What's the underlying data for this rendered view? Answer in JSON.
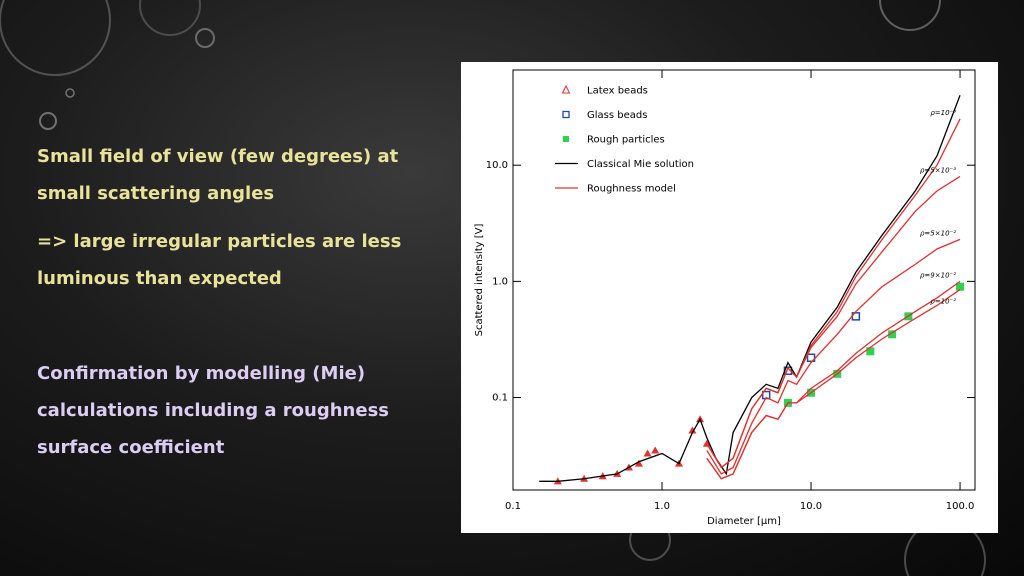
{
  "slide": {
    "paragraphs": [
      {
        "lines": [
          "Small field of view (few degrees) at",
          "small scattering angles"
        ],
        "color": "#e9e39a"
      },
      {
        "lines": [
          "=> large irregular  particles are less",
          "luminous than expected"
        ],
        "color": "#e9e39a"
      },
      {
        "lines": [
          "Confirmation by modelling (Mie)",
          "calculations including a roughness",
          "surface coefficient"
        ],
        "color": "#dccdf2"
      }
    ]
  },
  "chart_data": {
    "type": "scatter",
    "log_x": true,
    "log_y": true,
    "x_label": "Diameter [μm]",
    "y_label": "Scattered intensity [V]",
    "xlim": [
      0.1,
      126
    ],
    "ylim": [
      0.016,
      66
    ],
    "xticks": [
      0.1,
      {
        "value": 1,
        "label": "1.0"
      },
      {
        "value": 10,
        "label": "10.0"
      },
      {
        "value": 100,
        "label": "100.0"
      }
    ],
    "yticks": [
      0.1,
      {
        "value": 1,
        "label": "1.0"
      },
      {
        "value": 10,
        "label": "10.0"
      }
    ],
    "series": [
      {
        "name": "Latex beads",
        "color": "#e03030",
        "marker": "triangle",
        "x": [
          0.2,
          0.3,
          0.4,
          0.5,
          0.6,
          0.7,
          0.8,
          0.9,
          1.3,
          1.6,
          1.8,
          2.0
        ],
        "values": [
          0.019,
          0.02,
          0.021,
          0.022,
          0.025,
          0.027,
          0.033,
          0.035,
          0.027,
          0.052,
          0.065,
          0.04
        ]
      },
      {
        "name": "Glass beads",
        "color": "#1a4fa0",
        "marker": "square",
        "x": [
          5,
          7,
          10,
          20
        ],
        "values": [
          0.105,
          0.17,
          0.22,
          0.5
        ]
      },
      {
        "name": "Rough particles",
        "color": "#30d050",
        "marker": "cross",
        "x": [
          7,
          10,
          15,
          25,
          35,
          45,
          100
        ],
        "values": [
          0.09,
          0.11,
          0.16,
          0.25,
          0.35,
          0.5,
          0.9
        ]
      },
      {
        "name": "Classical Mie solution",
        "color": "#000000",
        "marker": "line",
        "x": [
          0.15,
          0.2,
          0.3,
          0.5,
          0.7,
          1.0,
          1.3,
          1.6,
          1.8,
          2.0,
          2.3,
          2.7,
          3,
          4,
          5,
          6,
          7,
          8,
          10,
          15,
          20,
          30,
          50,
          70,
          100
        ],
        "values": [
          0.019,
          0.019,
          0.02,
          0.022,
          0.028,
          0.033,
          0.027,
          0.05,
          0.065,
          0.045,
          0.03,
          0.022,
          0.05,
          0.1,
          0.13,
          0.12,
          0.2,
          0.15,
          0.3,
          0.6,
          1.2,
          2.5,
          6,
          12,
          40
        ]
      },
      {
        "name": "Roughness model",
        "color": "#e03030",
        "marker": "line",
        "x": [
          2,
          2.5,
          3,
          4,
          5,
          6,
          7,
          8,
          10,
          15,
          20,
          30,
          50,
          70,
          100
        ],
        "curves": [
          {
            "label": "ρ=10⁻³",
            "values": [
              0.04,
              0.025,
              0.03,
              0.08,
              0.12,
              0.11,
              0.18,
              0.15,
              0.28,
              0.55,
              1.1,
              2.3,
              5.5,
              10,
              25
            ]
          },
          {
            "label": "ρ=5×10⁻³",
            "values": [
              0.04,
              0.025,
              0.03,
              0.08,
              0.12,
              0.11,
              0.18,
              0.15,
              0.27,
              0.5,
              0.95,
              1.8,
              4,
              6,
              8
            ]
          },
          {
            "label": "ρ=5×10⁻²",
            "values": [
              0.035,
              0.022,
              0.025,
              0.06,
              0.1,
              0.09,
              0.14,
              0.13,
              0.2,
              0.35,
              0.55,
              0.9,
              1.4,
              1.9,
              2.3
            ]
          },
          {
            "label": "ρ=9×10⁻²",
            "values": [
              0.03,
              0.02,
              0.022,
              0.05,
              0.07,
              0.065,
              0.09,
              0.09,
              0.12,
              0.17,
              0.24,
              0.36,
              0.55,
              0.72,
              1.0
            ]
          },
          {
            "label": "ρ=10⁻²",
            "values": [
              0.03,
              0.02,
              0.022,
              0.05,
              0.07,
              0.065,
              0.09,
              0.09,
              0.11,
              0.16,
              0.22,
              0.32,
              0.48,
              0.62,
              0.85
            ]
          }
        ]
      }
    ]
  }
}
